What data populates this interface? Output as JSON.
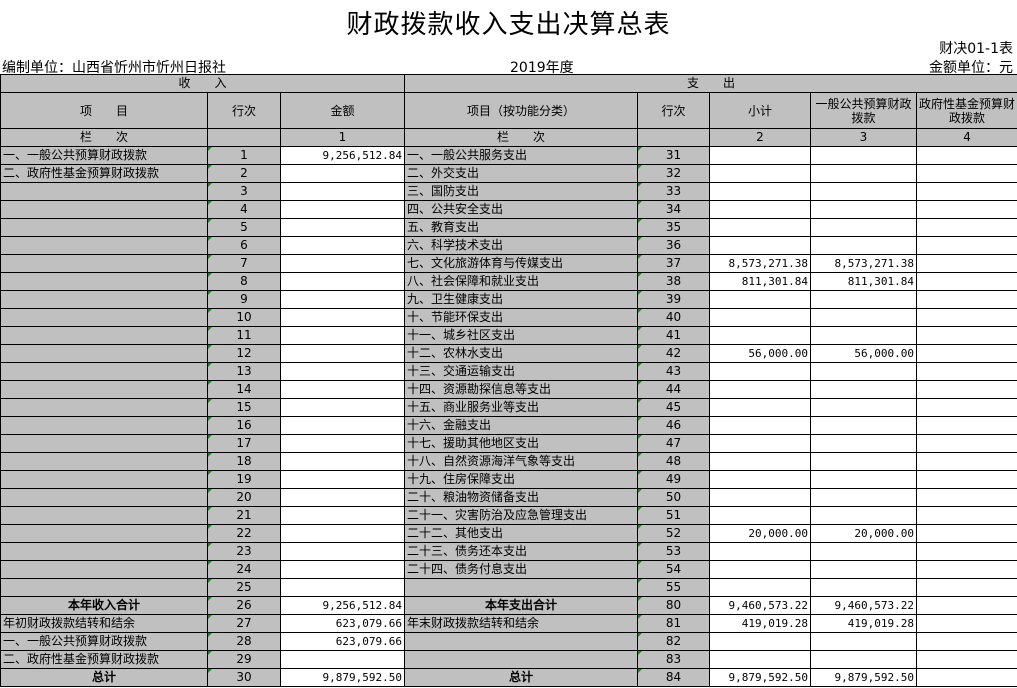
{
  "title": "财政拨款收入支出决算总表",
  "form_code": "财决01-1表",
  "unit": "编制单位：山西省忻州市忻州日报社",
  "year": "2019年度",
  "money_unit": "金额单位：元",
  "headers": {
    "income": "收　　入",
    "expense": "支　　出",
    "item": "项　　目",
    "row_no": "行次",
    "amount": "金额",
    "exp_item": "项目（按功能分类）",
    "exp_row_no": "行次",
    "subtotal": "小计",
    "general": "一般公共预算财政拨款",
    "fund": "政府性基金预算财政拨款",
    "col_label": "栏　　次",
    "col1": "1",
    "col2": "2",
    "col3": "3",
    "col4": "4"
  },
  "rows": [
    [
      "一、一般公共预算财政拨款",
      "1",
      "9,256,512.84",
      "一、一般公共服务支出",
      "31",
      "",
      "",
      ""
    ],
    [
      "二、政府性基金预算财政拨款",
      "2",
      "",
      "二、外交支出",
      "32",
      "",
      "",
      ""
    ],
    [
      "",
      "3",
      "",
      "三、国防支出",
      "33",
      "",
      "",
      ""
    ],
    [
      "",
      "4",
      "",
      "四、公共安全支出",
      "34",
      "",
      "",
      ""
    ],
    [
      "",
      "5",
      "",
      "五、教育支出",
      "35",
      "",
      "",
      ""
    ],
    [
      "",
      "6",
      "",
      "六、科学技术支出",
      "36",
      "",
      "",
      ""
    ],
    [
      "",
      "7",
      "",
      "七、文化旅游体育与传媒支出",
      "37",
      "8,573,271.38",
      "8,573,271.38",
      ""
    ],
    [
      "",
      "8",
      "",
      "八、社会保障和就业支出",
      "38",
      "811,301.84",
      "811,301.84",
      ""
    ],
    [
      "",
      "9",
      "",
      "九、卫生健康支出",
      "39",
      "",
      "",
      ""
    ],
    [
      "",
      "10",
      "",
      "十、节能环保支出",
      "40",
      "",
      "",
      ""
    ],
    [
      "",
      "11",
      "",
      "十一、城乡社区支出",
      "41",
      "",
      "",
      ""
    ],
    [
      "",
      "12",
      "",
      "十二、农林水支出",
      "42",
      "56,000.00",
      "56,000.00",
      ""
    ],
    [
      "",
      "13",
      "",
      "十三、交通运输支出",
      "43",
      "",
      "",
      ""
    ],
    [
      "",
      "14",
      "",
      "十四、资源勘探信息等支出",
      "44",
      "",
      "",
      ""
    ],
    [
      "",
      "15",
      "",
      "十五、商业服务业等支出",
      "45",
      "",
      "",
      ""
    ],
    [
      "",
      "16",
      "",
      "十六、金融支出",
      "46",
      "",
      "",
      ""
    ],
    [
      "",
      "17",
      "",
      "十七、援助其他地区支出",
      "47",
      "",
      "",
      ""
    ],
    [
      "",
      "18",
      "",
      "十八、自然资源海洋气象等支出",
      "48",
      "",
      "",
      ""
    ],
    [
      "",
      "19",
      "",
      "十九、住房保障支出",
      "49",
      "",
      "",
      ""
    ],
    [
      "",
      "20",
      "",
      "二十、粮油物资储备支出",
      "50",
      "",
      "",
      ""
    ],
    [
      "",
      "21",
      "",
      "二十一、灾害防治及应急管理支出",
      "51",
      "",
      "",
      ""
    ],
    [
      "",
      "22",
      "",
      "二十二、其他支出",
      "52",
      "20,000.00",
      "20,000.00",
      ""
    ],
    [
      "",
      "23",
      "",
      "二十三、债务还本支出",
      "53",
      "",
      "",
      ""
    ],
    [
      "",
      "24",
      "",
      "二十四、债务付息支出",
      "54",
      "",
      "",
      ""
    ],
    [
      "",
      "25",
      "",
      "",
      "55",
      "",
      "",
      ""
    ],
    [
      "本年收入合计",
      "26",
      "9,256,512.84",
      "本年支出合计",
      "80",
      "9,460,573.22",
      "9,460,573.22",
      ""
    ],
    [
      "年初财政拨款结转和结余",
      "27",
      "623,079.66",
      "年末财政拨款结转和结余",
      "81",
      "419,019.28",
      "419,019.28",
      ""
    ],
    [
      "一、一般公共预算财政拨款",
      "28",
      "623,079.66",
      "",
      "82",
      "",
      "",
      ""
    ],
    [
      "二、政府性基金预算财政拨款",
      "29",
      "",
      "",
      "83",
      "",
      "",
      ""
    ],
    [
      "总计",
      "30",
      "9,879,592.50",
      "总计",
      "84",
      "9,879,592.50",
      "9,879,592.50",
      ""
    ]
  ],
  "bold_rows": [
    25,
    29
  ]
}
